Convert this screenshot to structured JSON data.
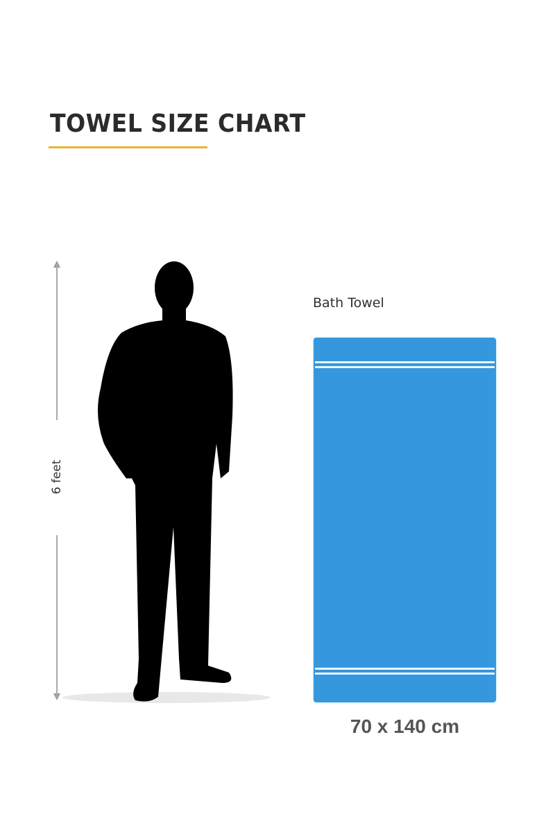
{
  "title": "TOWEL SIZE CHART",
  "accent_color": "#e8b530",
  "person": {
    "height_label": "6 feet"
  },
  "towel": {
    "name": "Bath Towel",
    "dimensions": "70 x 140 cm",
    "color": "#3597dd"
  }
}
